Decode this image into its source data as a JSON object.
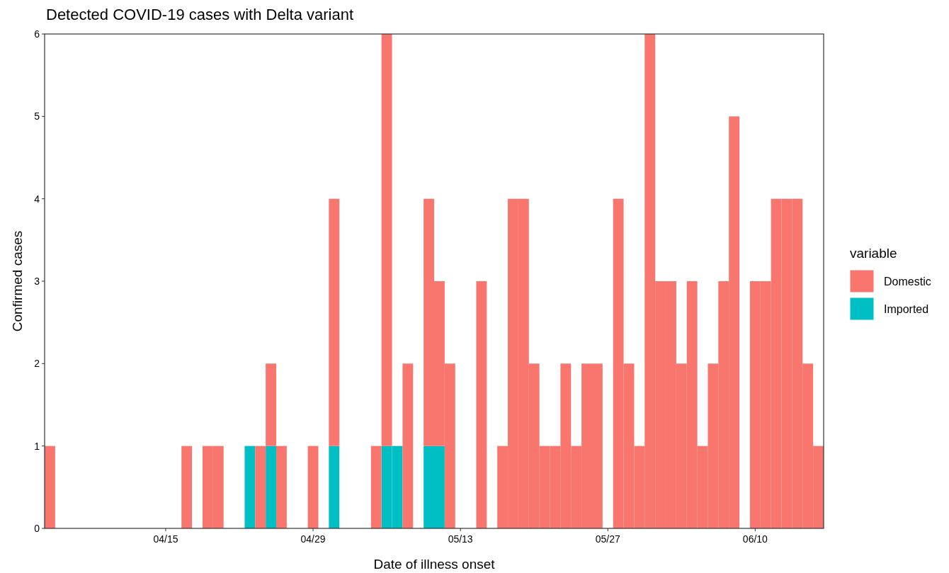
{
  "chart_data": {
    "type": "bar",
    "title": "Detected COVID-19 cases with Delta variant",
    "xlabel": "Date of illness onset",
    "ylabel": "Confirmed cases",
    "legend_title": "variable",
    "stacked": true,
    "legend": "right",
    "grid": false,
    "x": [
      "--04-04",
      "--04-05",
      "--04-06",
      "--04-07",
      "--04-08",
      "--04-09",
      "--04-10",
      "--04-11",
      "--04-12",
      "--04-13",
      "--04-14",
      "--04-15",
      "--04-16",
      "--04-17",
      "--04-18",
      "--04-19",
      "--04-20",
      "--04-21",
      "--04-22",
      "--04-23",
      "--04-24",
      "--04-25",
      "--04-26",
      "--04-27",
      "--04-28",
      "--04-29",
      "--04-30",
      "--05-01",
      "--05-02",
      "--05-03",
      "--05-04",
      "--05-05",
      "--05-06",
      "--05-07",
      "--05-08",
      "--05-09",
      "--05-10",
      "--05-11",
      "--05-12",
      "--05-13",
      "--05-14",
      "--05-15",
      "--05-16",
      "--05-17",
      "--05-18",
      "--05-19",
      "--05-20",
      "--05-21",
      "--05-22",
      "--05-23",
      "--05-24",
      "--05-25",
      "--05-26",
      "--05-27",
      "--05-28",
      "--05-29",
      "--05-30",
      "--05-31",
      "--06-01",
      "--06-02",
      "--06-03",
      "--06-04",
      "--06-05",
      "--06-06",
      "--06-07",
      "--06-08",
      "--06-09",
      "--06-10",
      "--06-11",
      "--06-12",
      "--06-13",
      "--06-14",
      "--06-15",
      "--06-16"
    ],
    "xlim": [
      "--04-03T12:00",
      "--06-16T12:00"
    ],
    "xticks": [
      {
        "value": "--04-15",
        "label": "04/15"
      },
      {
        "value": "--04-29",
        "label": "04/29"
      },
      {
        "value": "--05-13",
        "label": "05/13"
      },
      {
        "value": "--05-27",
        "label": "05/27"
      },
      {
        "value": "--06-10",
        "label": "06/10"
      }
    ],
    "ylim": [
      0,
      6
    ],
    "yticks": [
      0,
      1,
      2,
      3,
      4,
      5,
      6
    ],
    "series": [
      {
        "name": "Imported",
        "color": "#00bfc4",
        "values": [
          0,
          0,
          0,
          0,
          0,
          0,
          0,
          0,
          0,
          0,
          0,
          0,
          0,
          0,
          0,
          0,
          0,
          0,
          0,
          1,
          0,
          1,
          0,
          0,
          0,
          0,
          0,
          1,
          0,
          0,
          0,
          0,
          1,
          1,
          0,
          0,
          1,
          1,
          0,
          0,
          0,
          0,
          0,
          0,
          0,
          0,
          0,
          0,
          0,
          0,
          0,
          0,
          0,
          0,
          0,
          0,
          0,
          0,
          0,
          0,
          0,
          0,
          0,
          0,
          0,
          0,
          0,
          0,
          0,
          0,
          0,
          0,
          0,
          0
        ]
      },
      {
        "name": "Domestic",
        "color": "#f8766d",
        "values": [
          1,
          0,
          0,
          0,
          0,
          0,
          0,
          0,
          0,
          0,
          0,
          0,
          0,
          1,
          0,
          1,
          1,
          0,
          0,
          0,
          1,
          1,
          1,
          0,
          0,
          1,
          0,
          3,
          0,
          0,
          0,
          1,
          5,
          0,
          2,
          0,
          3,
          2,
          2,
          0,
          0,
          3,
          0,
          1,
          4,
          4,
          2,
          1,
          1,
          2,
          1,
          2,
          2,
          0,
          4,
          2,
          1,
          6,
          3,
          3,
          2,
          3,
          1,
          2,
          3,
          5,
          0,
          3,
          3,
          4,
          4,
          4,
          2,
          1
        ]
      }
    ]
  }
}
